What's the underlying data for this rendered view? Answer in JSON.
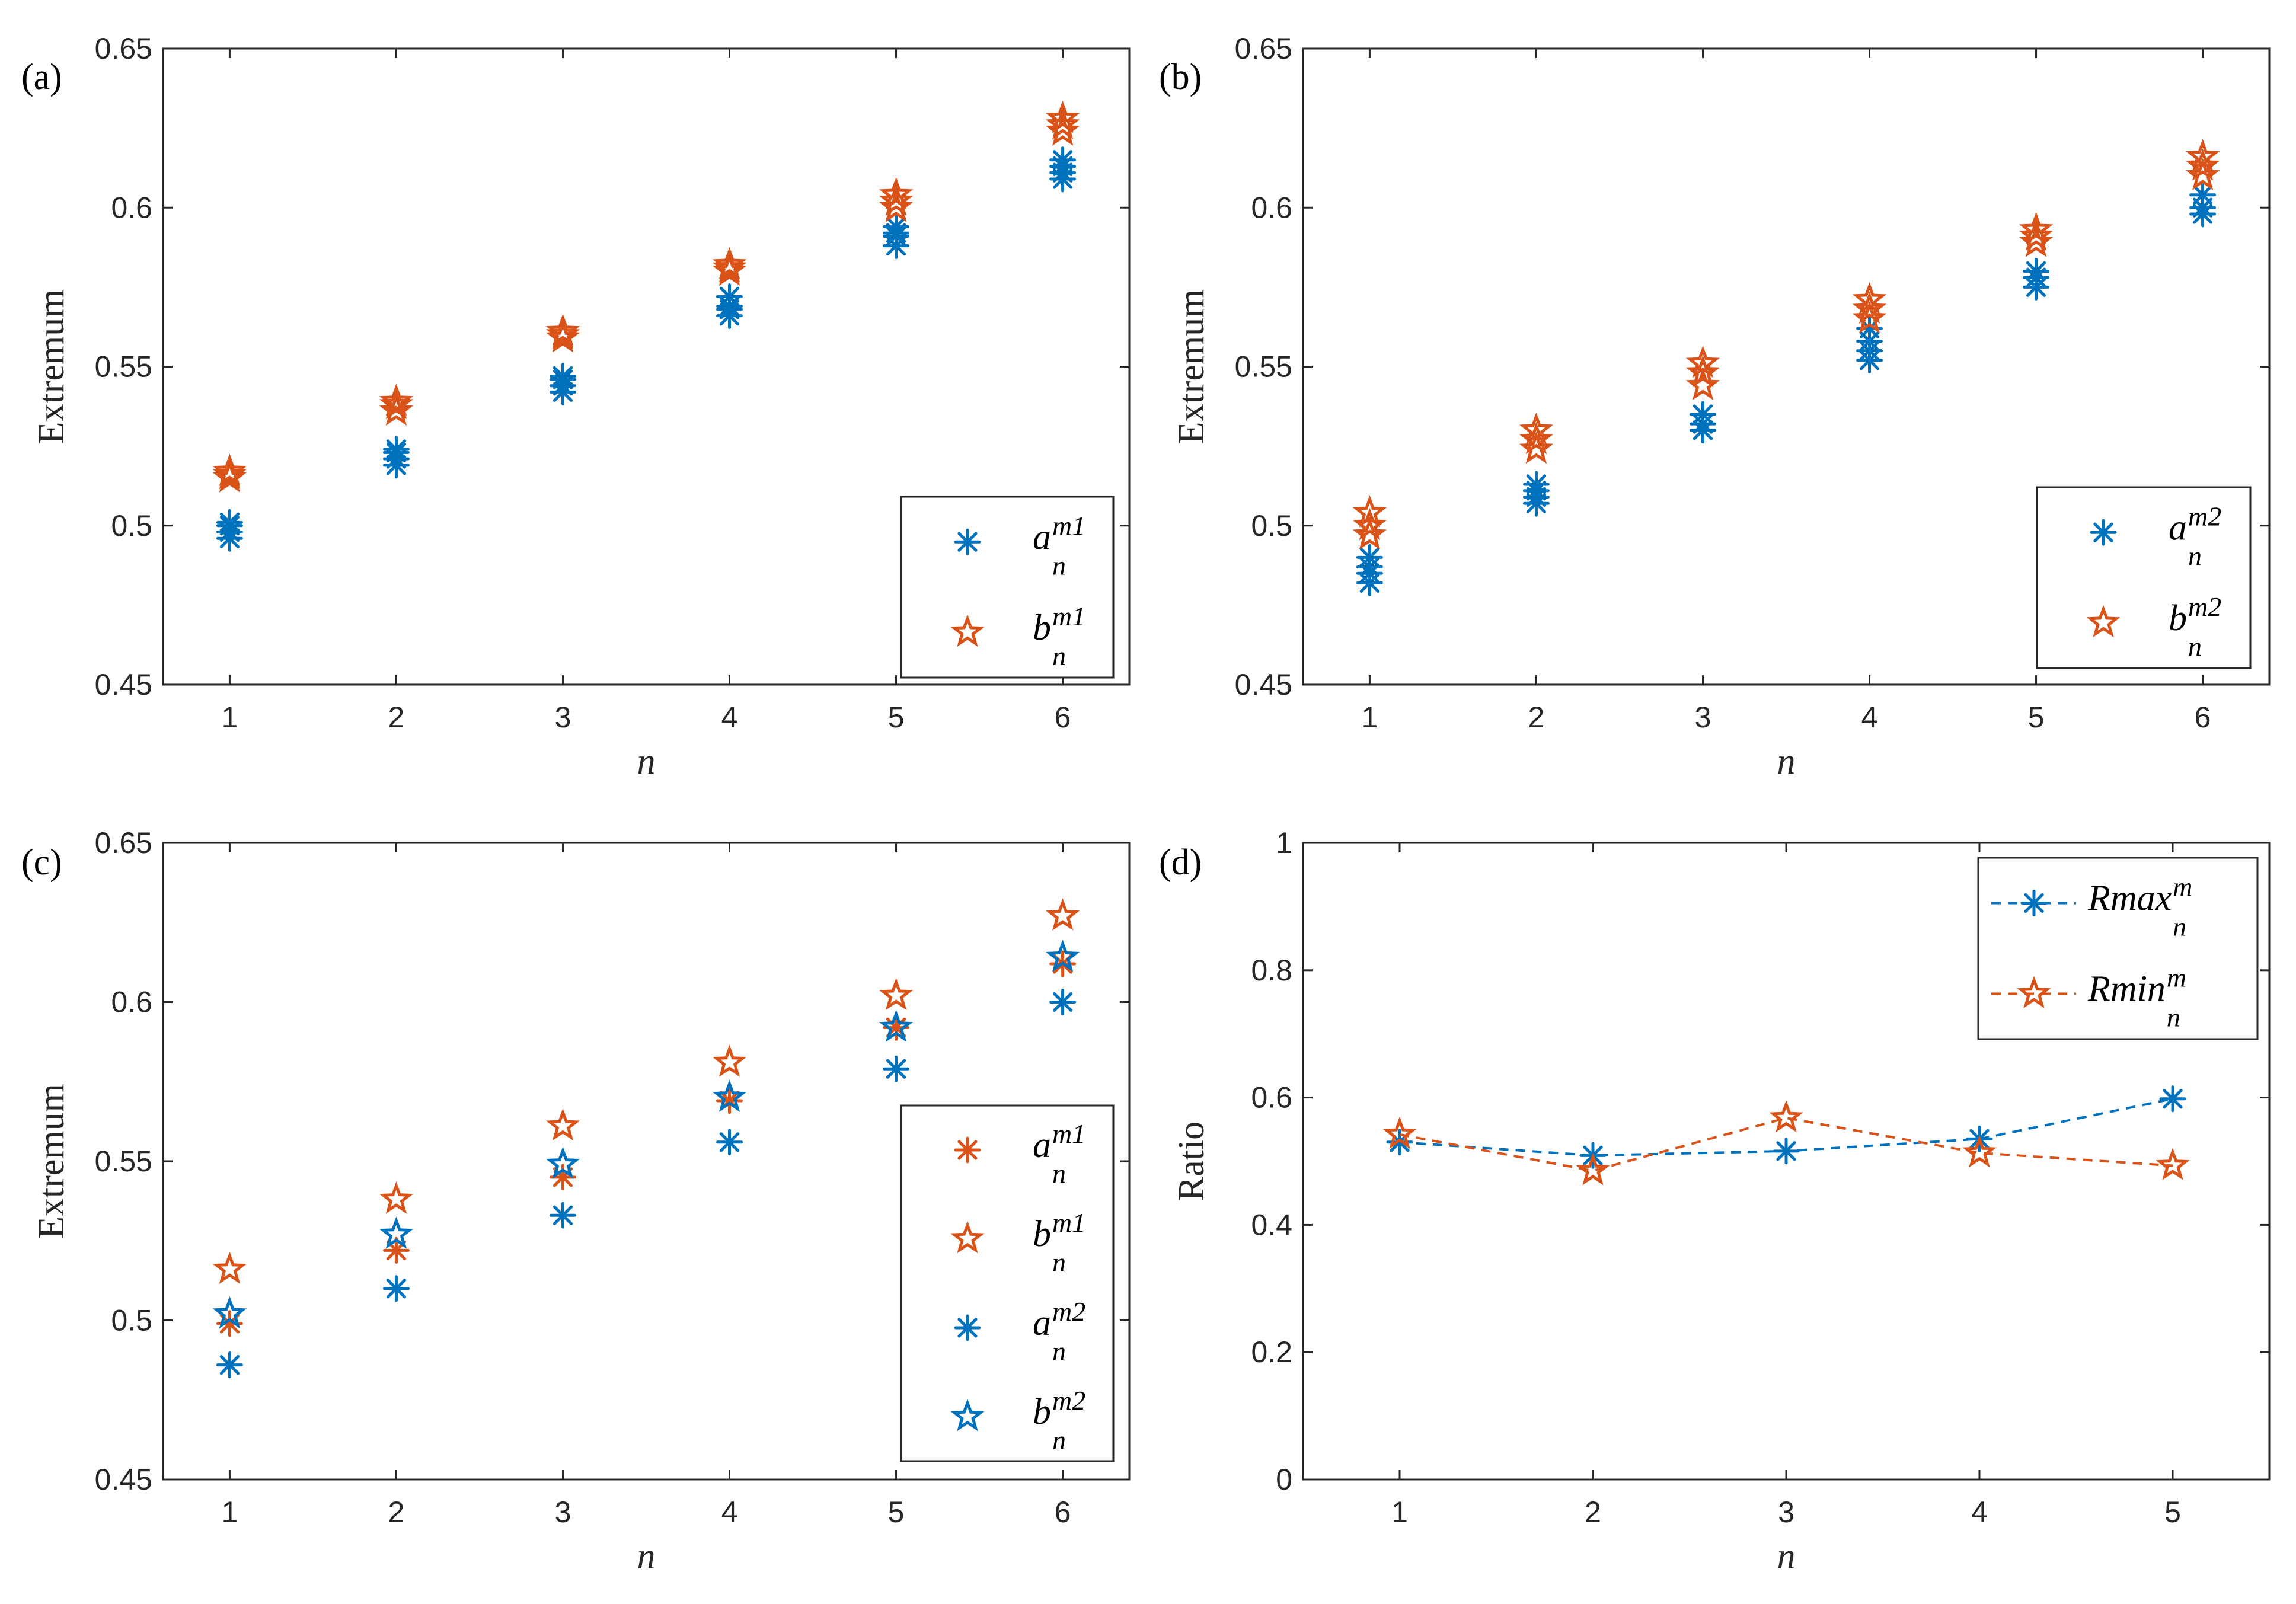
{
  "colors": {
    "blue": "#0072BD",
    "orange": "#D95319",
    "axis": "#262626"
  },
  "chart_data": [
    {
      "panel": "(a)",
      "type": "scatter",
      "xlabel": "n",
      "ylabel": "Extremum",
      "xlim": [
        0.6,
        6.4
      ],
      "ylim": [
        0.45,
        0.65
      ],
      "xticks": [
        1,
        2,
        3,
        4,
        5,
        6
      ],
      "yticks": [
        0.45,
        0.5,
        0.55,
        0.6,
        0.65
      ],
      "ytick_labels": [
        "0.45",
        "0.5",
        "0.55",
        "0.6",
        "0.65"
      ],
      "legend_position": "bottom-right",
      "series": [
        {
          "name": "a",
          "sup": "m1",
          "sub": "n",
          "marker": "asterisk",
          "color": "#0072BD",
          "points": [
            [
              1,
              0.496
            ],
            [
              1,
              0.498
            ],
            [
              1,
              0.5
            ],
            [
              1,
              0.501
            ],
            [
              2,
              0.519
            ],
            [
              2,
              0.521
            ],
            [
              2,
              0.523
            ],
            [
              2,
              0.524
            ],
            [
              3,
              0.542
            ],
            [
              3,
              0.544
            ],
            [
              3,
              0.546
            ],
            [
              3,
              0.547
            ],
            [
              4,
              0.566
            ],
            [
              4,
              0.568
            ],
            [
              4,
              0.569
            ],
            [
              4,
              0.572
            ],
            [
              5,
              0.588
            ],
            [
              5,
              0.591
            ],
            [
              5,
              0.592
            ],
            [
              5,
              0.594
            ],
            [
              6,
              0.609
            ],
            [
              6,
              0.611
            ],
            [
              6,
              0.613
            ],
            [
              6,
              0.615
            ]
          ]
        },
        {
          "name": "b",
          "sup": "m1",
          "sub": "n",
          "marker": "pentagram",
          "color": "#D95319",
          "points": [
            [
              1,
              0.515
            ],
            [
              1,
              0.516
            ],
            [
              1,
              0.517
            ],
            [
              2,
              0.536
            ],
            [
              2,
              0.538
            ],
            [
              2,
              0.539
            ],
            [
              3,
              0.559
            ],
            [
              3,
              0.56
            ],
            [
              3,
              0.561
            ],
            [
              4,
              0.58
            ],
            [
              4,
              0.581
            ],
            [
              4,
              0.582
            ],
            [
              5,
              0.6
            ],
            [
              5,
              0.602
            ],
            [
              5,
              0.604
            ],
            [
              6,
              0.624
            ],
            [
              6,
              0.626
            ],
            [
              6,
              0.628
            ]
          ]
        }
      ]
    },
    {
      "panel": "(b)",
      "type": "scatter",
      "xlabel": "n",
      "ylabel": "Extremum",
      "xlim": [
        0.6,
        6.4
      ],
      "ylim": [
        0.45,
        0.65
      ],
      "xticks": [
        1,
        2,
        3,
        4,
        5,
        6
      ],
      "yticks": [
        0.45,
        0.5,
        0.55,
        0.6,
        0.65
      ],
      "ytick_labels": [
        "0.45",
        "0.5",
        "0.55",
        "0.6",
        "0.65"
      ],
      "legend_position": "bottom-right",
      "series": [
        {
          "name": "a",
          "sup": "m2",
          "sub": "n",
          "marker": "asterisk",
          "color": "#0072BD",
          "points": [
            [
              1,
              0.482
            ],
            [
              1,
              0.485
            ],
            [
              1,
              0.487
            ],
            [
              1,
              0.49
            ],
            [
              2,
              0.507
            ],
            [
              2,
              0.509
            ],
            [
              2,
              0.511
            ],
            [
              2,
              0.513
            ],
            [
              3,
              0.53
            ],
            [
              3,
              0.532
            ],
            [
              3,
              0.535
            ],
            [
              4,
              0.552
            ],
            [
              4,
              0.555
            ],
            [
              4,
              0.558
            ],
            [
              4,
              0.562
            ],
            [
              5,
              0.575
            ],
            [
              5,
              0.578
            ],
            [
              5,
              0.58
            ],
            [
              6,
              0.598
            ],
            [
              6,
              0.6
            ],
            [
              6,
              0.604
            ]
          ]
        },
        {
          "name": "b",
          "sup": "m2",
          "sub": "n",
          "marker": "pentagram",
          "color": "#D95319",
          "points": [
            [
              1,
              0.497
            ],
            [
              1,
              0.5
            ],
            [
              1,
              0.504
            ],
            [
              2,
              0.524
            ],
            [
              2,
              0.527
            ],
            [
              2,
              0.53
            ],
            [
              3,
              0.544
            ],
            [
              3,
              0.548
            ],
            [
              3,
              0.551
            ],
            [
              4,
              0.565
            ],
            [
              4,
              0.568
            ],
            [
              4,
              0.571
            ],
            [
              5,
              0.589
            ],
            [
              5,
              0.591
            ],
            [
              5,
              0.593
            ],
            [
              6,
              0.61
            ],
            [
              6,
              0.613
            ],
            [
              6,
              0.616
            ]
          ]
        }
      ]
    },
    {
      "panel": "(c)",
      "type": "scatter",
      "xlabel": "n",
      "ylabel": "Extremum",
      "xlim": [
        0.6,
        6.4
      ],
      "ylim": [
        0.45,
        0.65
      ],
      "xticks": [
        1,
        2,
        3,
        4,
        5,
        6
      ],
      "yticks": [
        0.45,
        0.5,
        0.55,
        0.6,
        0.65
      ],
      "ytick_labels": [
        "0.45",
        "0.5",
        "0.55",
        "0.6",
        "0.65"
      ],
      "legend_position": "bottom-right",
      "series": [
        {
          "name": "a",
          "sup": "m1",
          "sub": "n",
          "marker": "asterisk",
          "color": "#D95319",
          "points": [
            [
              1,
              0.499
            ],
            [
              2,
              0.522
            ],
            [
              3,
              0.545
            ],
            [
              4,
              0.569
            ],
            [
              5,
              0.592
            ],
            [
              6,
              0.612
            ]
          ]
        },
        {
          "name": "b",
          "sup": "m1",
          "sub": "n",
          "marker": "pentagram",
          "color": "#D95319",
          "points": [
            [
              1,
              0.516
            ],
            [
              2,
              0.538
            ],
            [
              3,
              0.561
            ],
            [
              4,
              0.581
            ],
            [
              5,
              0.602
            ],
            [
              6,
              0.627
            ]
          ]
        },
        {
          "name": "a",
          "sup": "m2",
          "sub": "n",
          "marker": "asterisk",
          "color": "#0072BD",
          "points": [
            [
              1,
              0.486
            ],
            [
              2,
              0.51
            ],
            [
              3,
              0.533
            ],
            [
              4,
              0.556
            ],
            [
              5,
              0.579
            ],
            [
              6,
              0.6
            ]
          ]
        },
        {
          "name": "b",
          "sup": "m2",
          "sub": "n",
          "marker": "pentagram",
          "color": "#0072BD",
          "points": [
            [
              1,
              0.502
            ],
            [
              2,
              0.527
            ],
            [
              3,
              0.549
            ],
            [
              4,
              0.57
            ],
            [
              5,
              0.592
            ],
            [
              6,
              0.614
            ]
          ]
        }
      ]
    },
    {
      "panel": "(d)",
      "type": "line",
      "xlabel": "n",
      "ylabel": "Ratio",
      "xlim": [
        0.5,
        5.5
      ],
      "ylim": [
        0,
        1
      ],
      "xticks": [
        1,
        2,
        3,
        4,
        5
      ],
      "yticks": [
        0,
        0.2,
        0.4,
        0.6,
        0.8,
        1
      ],
      "ytick_labels": [
        "0",
        "0.2",
        "0.4",
        "0.6",
        "0.8",
        "1"
      ],
      "legend_position": "top-right",
      "series": [
        {
          "name": "Rmax",
          "sup": "m",
          "sub": "n",
          "marker": "asterisk",
          "color": "#0072BD",
          "points": [
            [
              1,
              0.53
            ],
            [
              2,
              0.509
            ],
            [
              3,
              0.516
            ],
            [
              4,
              0.535
            ],
            [
              5,
              0.598
            ]
          ]
        },
        {
          "name": "Rmin",
          "sup": "m",
          "sub": "n",
          "marker": "pentagram",
          "color": "#D95319",
          "points": [
            [
              1,
              0.542
            ],
            [
              2,
              0.485
            ],
            [
              3,
              0.568
            ],
            [
              4,
              0.513
            ],
            [
              5,
              0.493
            ]
          ]
        }
      ]
    }
  ]
}
